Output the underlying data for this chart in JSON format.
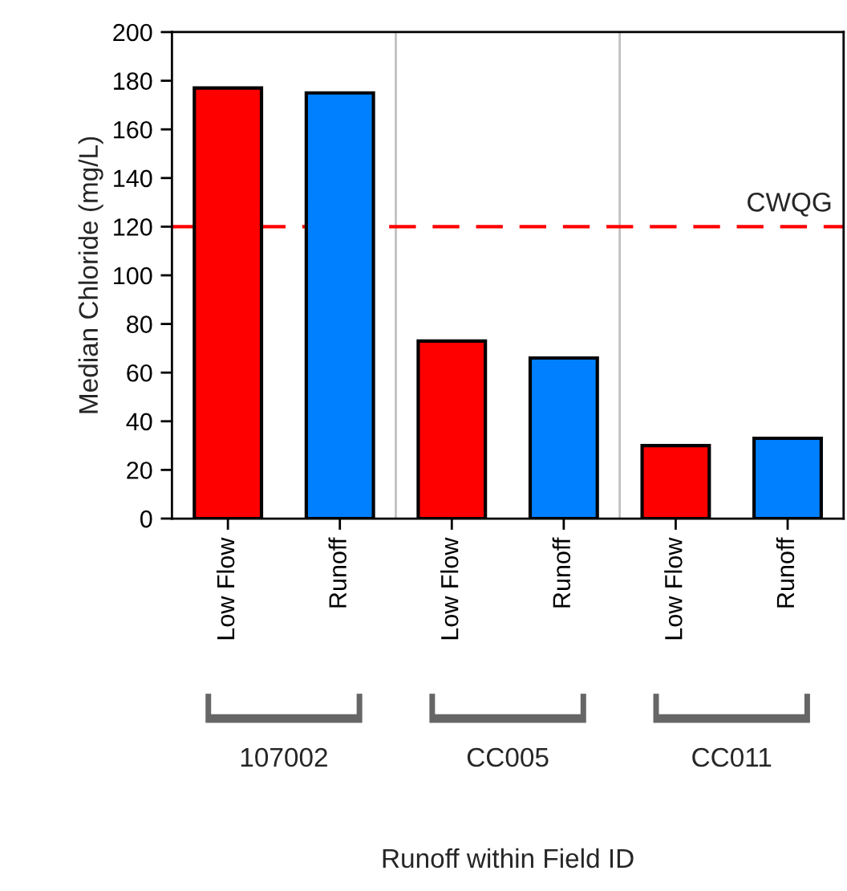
{
  "chart_data": {
    "type": "bar",
    "categories": [
      "Low Flow",
      "Runoff",
      "Low Flow",
      "Runoff",
      "Low Flow",
      "Runoff"
    ],
    "values": [
      177,
      175,
      73,
      66,
      30,
      33
    ],
    "colors": [
      "#ff0000",
      "#0080ff",
      "#ff0000",
      "#0080ff",
      "#ff0000",
      "#0080ff"
    ],
    "ylabel": "Median Chloride (mg/L)",
    "ylim": [
      0,
      200
    ],
    "yticks": [
      0,
      20,
      40,
      60,
      80,
      100,
      120,
      140,
      160,
      180,
      200
    ],
    "ref_lines": [
      {
        "axis": "y",
        "value": 120,
        "label": "CWQG",
        "color": "#ff0000",
        "line_style": "dashed"
      }
    ],
    "annotations": [
      "107002",
      "CC005",
      "CC011",
      "Runoff within Field ID"
    ],
    "grid": false,
    "legend": false
  }
}
